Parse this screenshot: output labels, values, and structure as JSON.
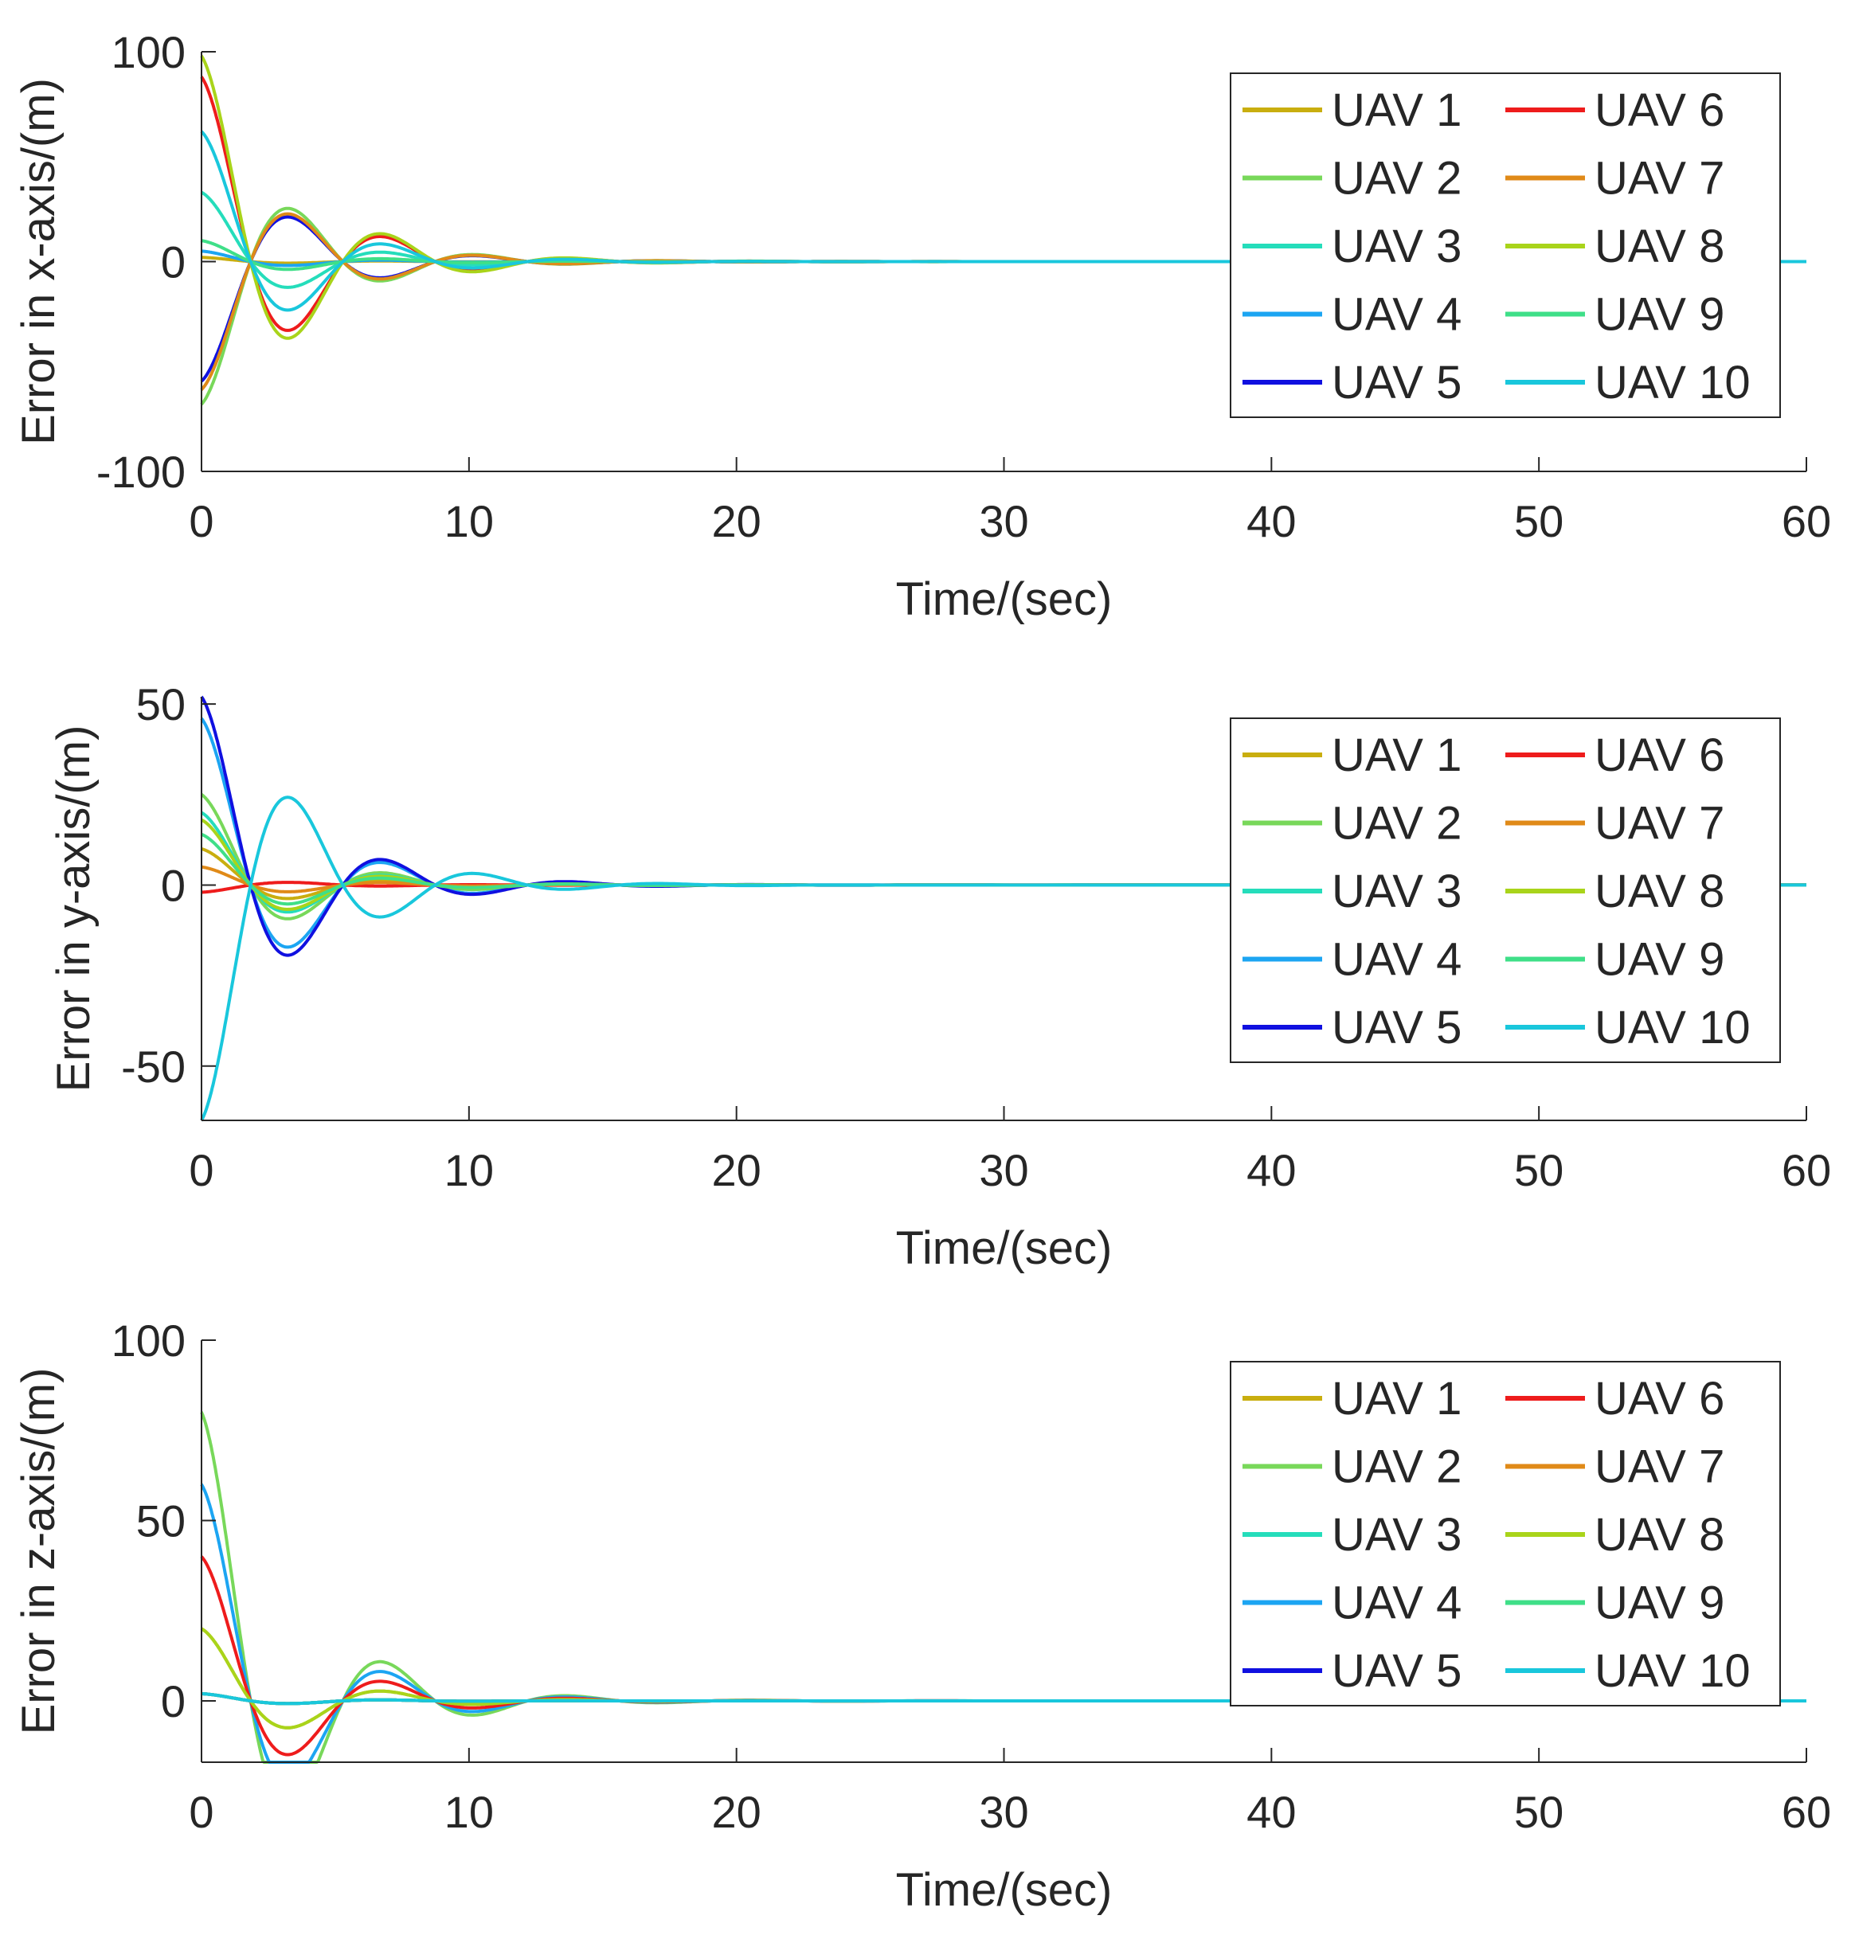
{
  "chart_data": [
    {
      "type": "line",
      "xlabel": "Time/(sec)",
      "ylabel": "Error in x-axis/(m)",
      "xlim": [
        0,
        60
      ],
      "ylim": [
        -100,
        100
      ],
      "xticks": [
        0,
        10,
        20,
        30,
        40,
        50,
        60
      ],
      "yticks": [
        -100,
        0,
        100
      ],
      "ytick_labels": [
        "-100",
        "0",
        "100"
      ],
      "legend_location": "top-right",
      "grid": false,
      "series": [
        {
          "name": "UAV 1",
          "color": "#c9ae0f",
          "initial_error": 2
        },
        {
          "name": "UAV 2",
          "color": "#78d85a",
          "initial_error": -68
        },
        {
          "name": "UAV 3",
          "color": "#25ddbb",
          "initial_error": 33
        },
        {
          "name": "UAV 4",
          "color": "#1ca5f2",
          "initial_error": 5
        },
        {
          "name": "UAV 5",
          "color": "#1010e0",
          "initial_error": -57
        },
        {
          "name": "UAV 6",
          "color": "#ee1c1c",
          "initial_error": 88
        },
        {
          "name": "UAV 7",
          "color": "#e08a18",
          "initial_error": -61
        },
        {
          "name": "UAV 8",
          "color": "#a9d41a",
          "initial_error": 98
        },
        {
          "name": "UAV 9",
          "color": "#3fdf88",
          "initial_error": 10
        },
        {
          "name": "UAV 10",
          "color": "#19c7dc",
          "initial_error": 62
        }
      ]
    },
    {
      "type": "line",
      "xlabel": "Time/(sec)",
      "ylabel": "Error in y-axis/(m)",
      "xlim": [
        0,
        60
      ],
      "ylim": [
        -65,
        52
      ],
      "xticks": [
        0,
        10,
        20,
        30,
        40,
        50,
        60
      ],
      "yticks": [
        -50,
        0,
        50
      ],
      "ytick_labels": [
        "-50",
        "0",
        "50"
      ],
      "legend_location": "top-right",
      "grid": false,
      "series": [
        {
          "name": "UAV 1",
          "color": "#c9ae0f",
          "initial_error": 10
        },
        {
          "name": "UAV 2",
          "color": "#78d85a",
          "initial_error": 25
        },
        {
          "name": "UAV 3",
          "color": "#25ddbb",
          "initial_error": 20
        },
        {
          "name": "UAV 4",
          "color": "#1ca5f2",
          "initial_error": 46
        },
        {
          "name": "UAV 5",
          "color": "#1010e0",
          "initial_error": 52
        },
        {
          "name": "UAV 6",
          "color": "#ee1c1c",
          "initial_error": -2
        },
        {
          "name": "UAV 7",
          "color": "#e08a18",
          "initial_error": 5
        },
        {
          "name": "UAV 8",
          "color": "#a9d41a",
          "initial_error": 18
        },
        {
          "name": "UAV 9",
          "color": "#3fdf88",
          "initial_error": 14
        },
        {
          "name": "UAV 10",
          "color": "#19c7dc",
          "initial_error": -65
        }
      ]
    },
    {
      "type": "line",
      "xlabel": "Time/(sec)",
      "ylabel": "Error in z-axis/(m)",
      "xlim": [
        0,
        60
      ],
      "ylim": [
        -17,
        100
      ],
      "xticks": [
        0,
        10,
        20,
        30,
        40,
        50,
        60
      ],
      "yticks": [
        0,
        50,
        100
      ],
      "ytick_labels": [
        "0",
        "50",
        "100"
      ],
      "legend_location": "top-right",
      "grid": false,
      "series": [
        {
          "name": "UAV 1",
          "color": "#c9ae0f",
          "initial_error": 20
        },
        {
          "name": "UAV 2",
          "color": "#78d85a",
          "initial_error": 80
        },
        {
          "name": "UAV 3",
          "color": "#25ddbb",
          "initial_error": 2
        },
        {
          "name": "UAV 4",
          "color": "#1ca5f2",
          "initial_error": 60
        },
        {
          "name": "UAV 5",
          "color": "#1010e0",
          "initial_error": 2
        },
        {
          "name": "UAV 6",
          "color": "#ee1c1c",
          "initial_error": 40
        },
        {
          "name": "UAV 7",
          "color": "#e08a18",
          "initial_error": 2
        },
        {
          "name": "UAV 8",
          "color": "#a9d41a",
          "initial_error": 20
        },
        {
          "name": "UAV 9",
          "color": "#3fdf88",
          "initial_error": 2
        },
        {
          "name": "UAV 10",
          "color": "#19c7dc",
          "initial_error": 2
        }
      ]
    }
  ]
}
